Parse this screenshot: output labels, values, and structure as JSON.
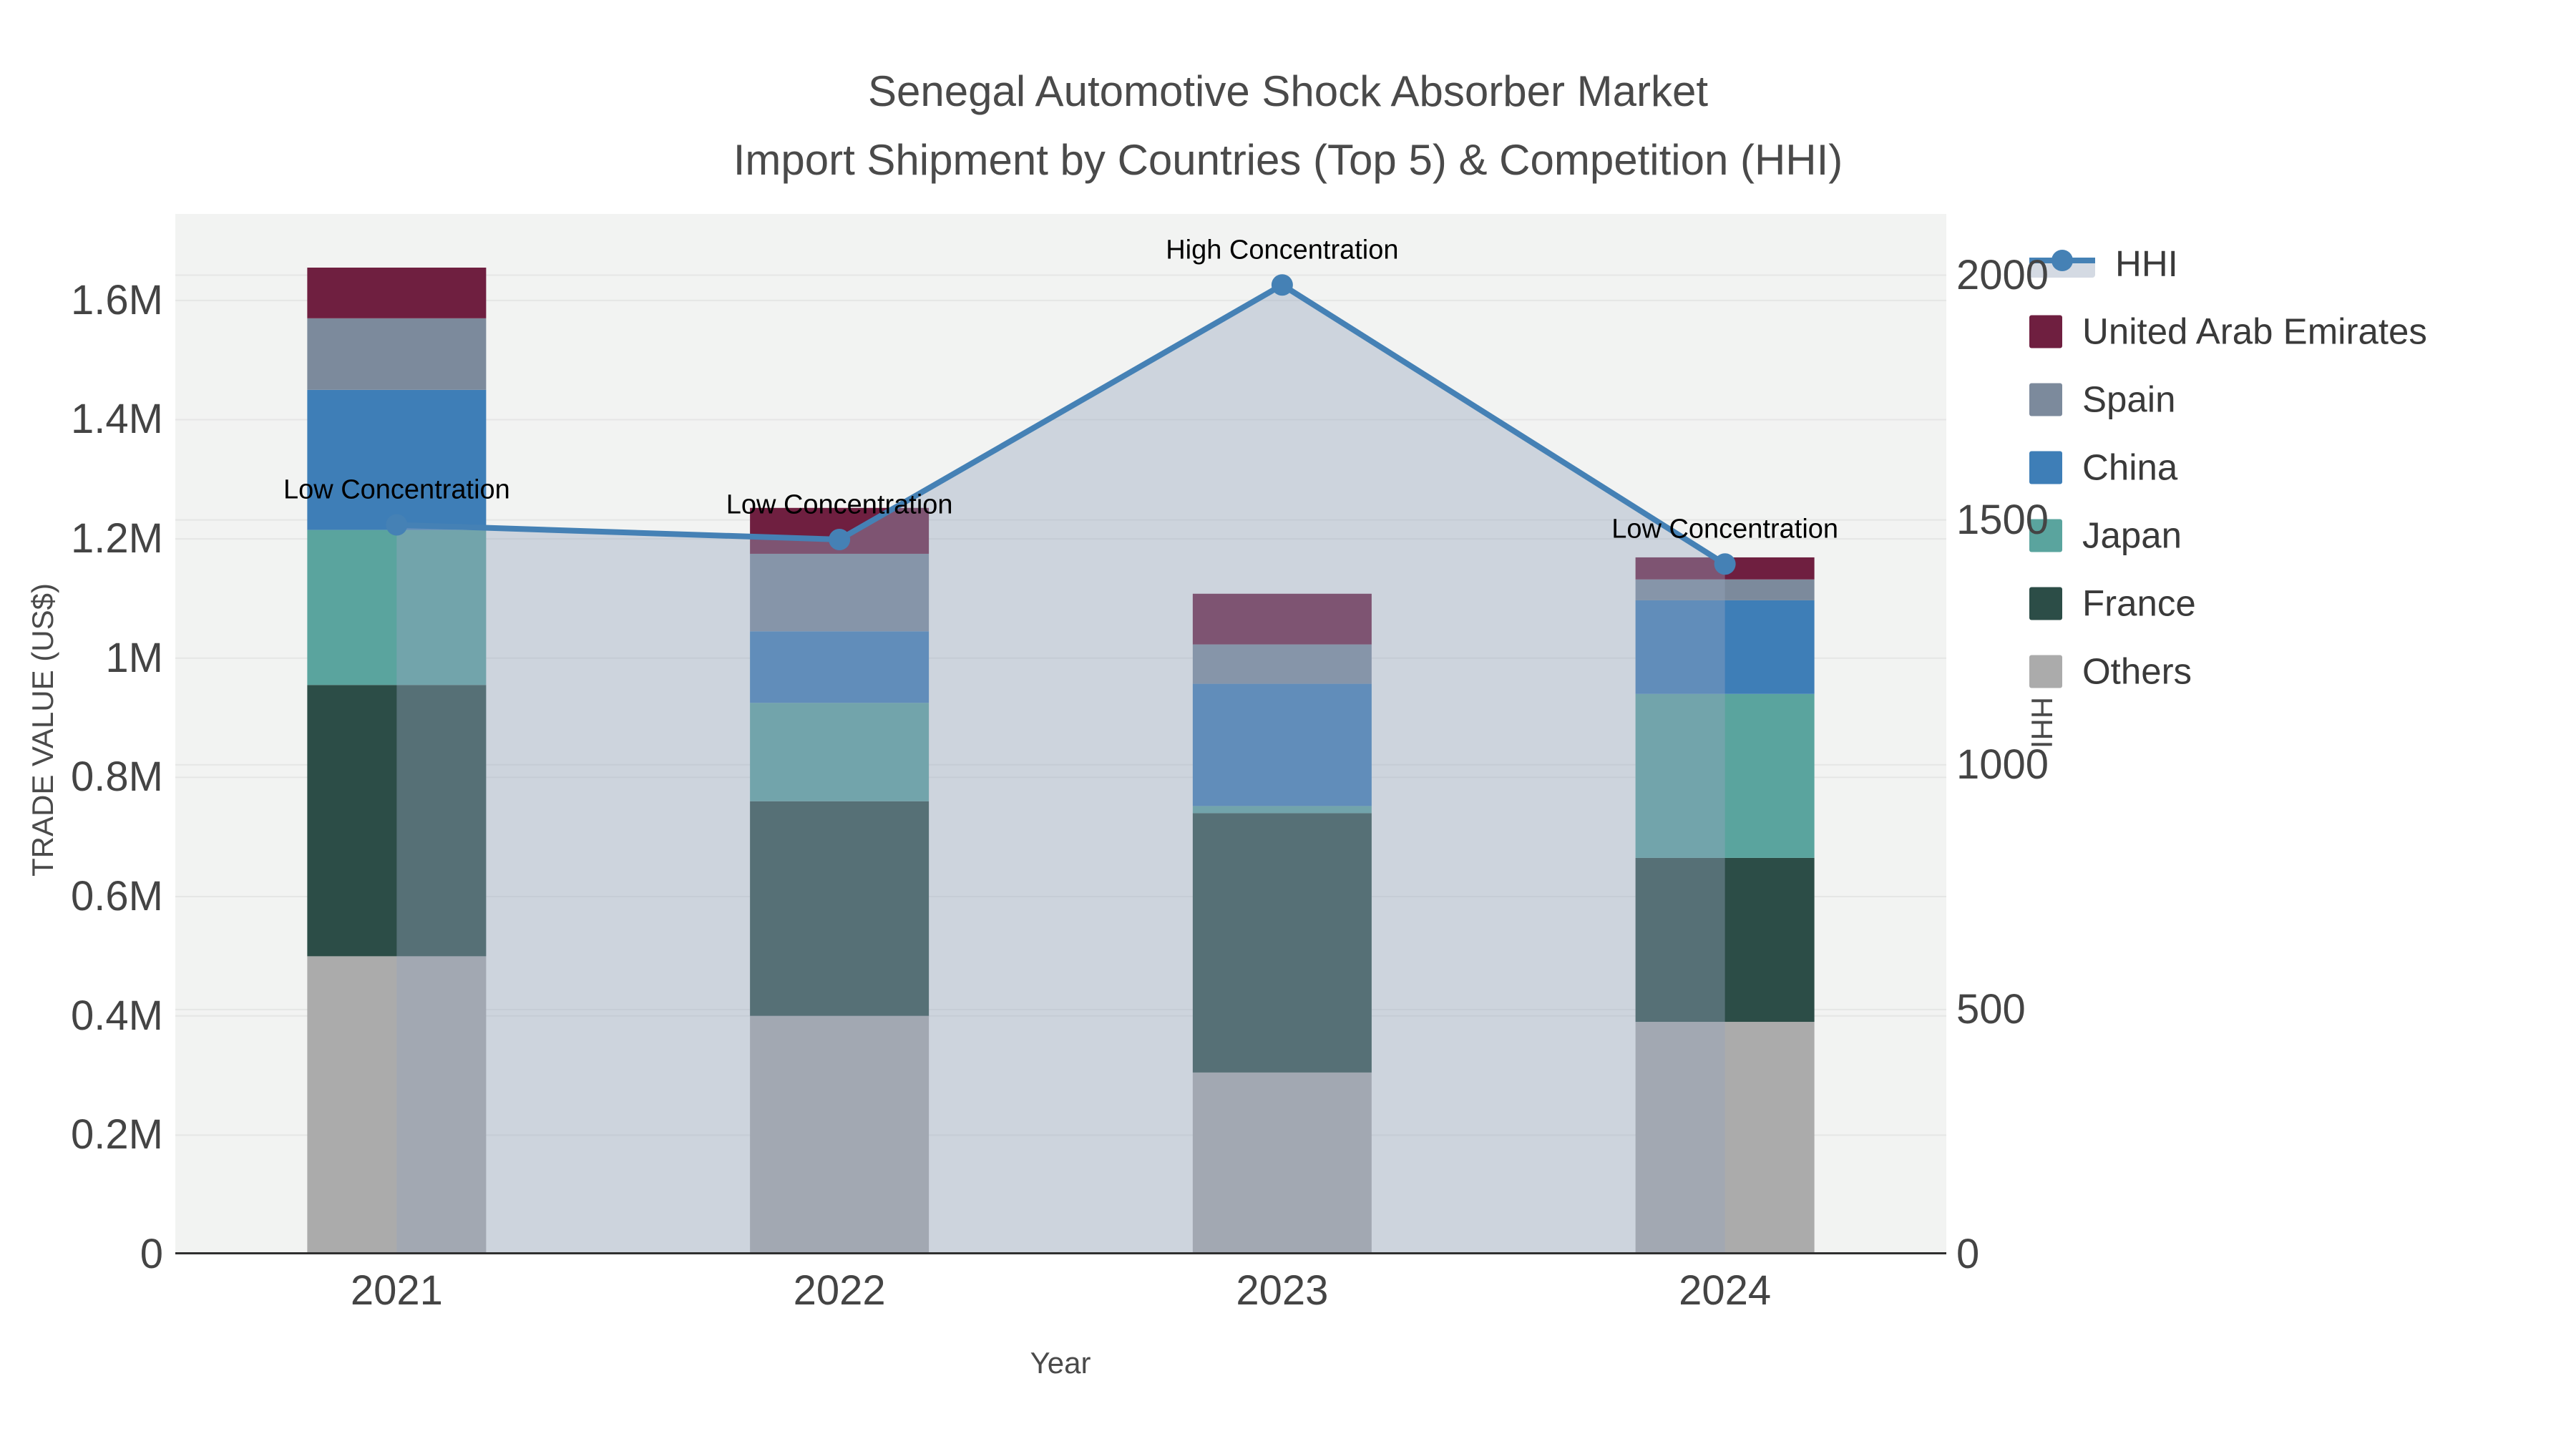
{
  "title": {
    "line1": "Senegal Automotive Shock Absorber Market",
    "line2": "Import Shipment by Countries (Top 5) & Competition (HHI)"
  },
  "axes": {
    "x": {
      "title": "Year",
      "categories": [
        "2021",
        "2022",
        "2023",
        "2024"
      ]
    },
    "y_left": {
      "title": "TRADE VALUE (US$)",
      "range": [
        0,
        1745000
      ],
      "ticks": [
        {
          "v": 0,
          "label": "0"
        },
        {
          "v": 200000,
          "label": "0.2M"
        },
        {
          "v": 400000,
          "label": "0.4M"
        },
        {
          "v": 600000,
          "label": "0.6M"
        },
        {
          "v": 800000,
          "label": "0.8M"
        },
        {
          "v": 1000000,
          "label": "1M"
        },
        {
          "v": 1200000,
          "label": "1.2M"
        },
        {
          "v": 1400000,
          "label": "1.4M"
        },
        {
          "v": 1600000,
          "label": "1.6M"
        }
      ]
    },
    "y_right": {
      "title": "HHI",
      "range": [
        0,
        2125
      ],
      "ticks": [
        {
          "v": 0,
          "label": "0"
        },
        {
          "v": 500,
          "label": "500"
        },
        {
          "v": 1000,
          "label": "1000"
        },
        {
          "v": 1500,
          "label": "1500"
        },
        {
          "v": 2000,
          "label": "2000"
        }
      ]
    }
  },
  "chart_data": {
    "type": "combo-stacked-bar-line",
    "categories": [
      "2021",
      "2022",
      "2023",
      "2024"
    ],
    "bar_series": [
      {
        "name": "Others",
        "color": "#ababab",
        "values": [
          500000,
          400000,
          305000,
          390000
        ]
      },
      {
        "name": "France",
        "color": "#2c4d47",
        "values": [
          455000,
          360000,
          435000,
          275000
        ]
      },
      {
        "name": "Japan",
        "color": "#5aa49e",
        "values": [
          260000,
          165000,
          12000,
          275000
        ]
      },
      {
        "name": "China",
        "color": "#3e7eb7",
        "values": [
          235000,
          120000,
          205000,
          157000
        ]
      },
      {
        "name": "Spain",
        "color": "#7c8a9c",
        "values": [
          120000,
          130000,
          66000,
          35000
        ]
      },
      {
        "name": "United Arab Emirates",
        "color": "#6f1f40",
        "values": [
          85000,
          77000,
          85000,
          37000
        ]
      }
    ],
    "line_series": {
      "name": "HHI",
      "color": "#4581b5",
      "area_color": "rgba(150,165,190,0.40)",
      "legend_band_color": "#d4dae3",
      "values": [
        1490,
        1460,
        1980,
        1410
      ]
    },
    "annotations": [
      {
        "x": "2021",
        "text": "Low Concentration"
      },
      {
        "x": "2022",
        "text": "Low Concentration"
      },
      {
        "x": "2023",
        "text": "High Concentration"
      },
      {
        "x": "2024",
        "text": "Low Concentration"
      }
    ],
    "legend_order": [
      "HHI",
      "United Arab Emirates",
      "Spain",
      "China",
      "Japan",
      "France",
      "Others"
    ],
    "plot_background": "#f2f3f2",
    "gridline_color": "#e5e6e5",
    "baseline_color": "#2f2f2f"
  }
}
